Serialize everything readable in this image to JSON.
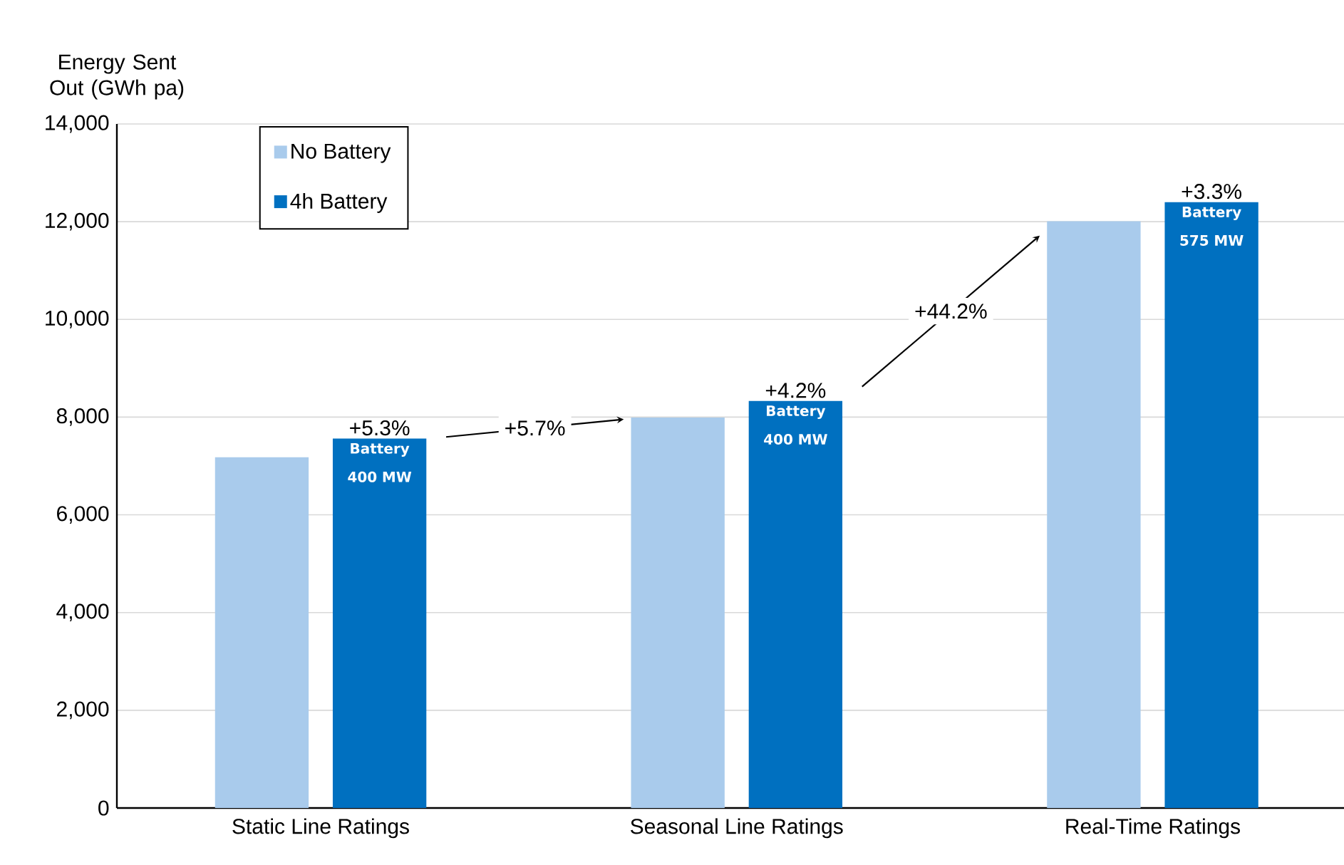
{
  "chart_data": {
    "type": "bar",
    "ylabel": "Energy Sent Out (GWh pa)",
    "categories": [
      "Static Line Ratings",
      "Seasonal Line Ratings",
      "Real-Time Ratings"
    ],
    "series": [
      {
        "name": "No Battery",
        "color": "#a9cbec",
        "values": [
          7180,
          7990,
          12010
        ]
      },
      {
        "name": "4h Battery",
        "color": "#0070c0",
        "values": [
          7560,
          8330,
          12400
        ]
      }
    ],
    "ylim": [
      0,
      14000
    ],
    "yticks": [
      {
        "value": 0,
        "label": "0"
      },
      {
        "value": 2000,
        "label": "2,000"
      },
      {
        "value": 4000,
        "label": "4,000"
      },
      {
        "value": 6000,
        "label": "6,000"
      },
      {
        "value": 8000,
        "label": "8,000"
      },
      {
        "value": 10000,
        "label": "10,000"
      },
      {
        "value": 12000,
        "label": "12,000"
      },
      {
        "value": 14000,
        "label": "14,000"
      }
    ],
    "grid": "y",
    "legend": "top left",
    "annotations": [
      "+5.7%",
      "+44.2%",
      "+5.3%",
      "+4.2%",
      "+3.3%",
      "Battery 400 MW",
      "Battery 400 MW",
      "Battery 575 MW"
    ]
  }
}
